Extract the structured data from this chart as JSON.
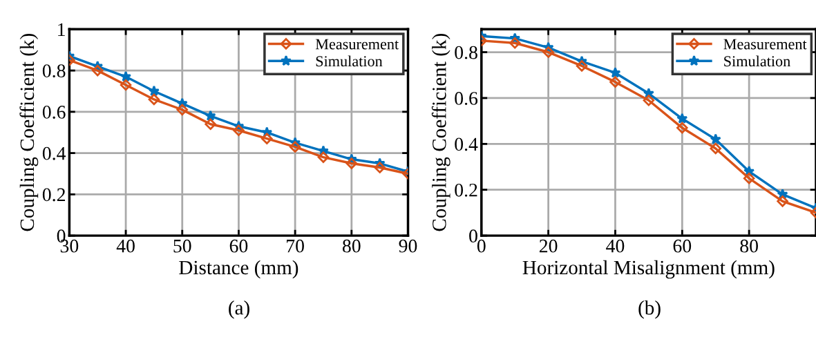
{
  "chart_data": [
    {
      "type": "line",
      "xlabel": "Distance (mm)",
      "ylabel": "Coupling Coefficient (k)",
      "annotations": [
        "(a)"
      ],
      "x": [
        30,
        35,
        40,
        45,
        50,
        55,
        60,
        65,
        70,
        75,
        80,
        85,
        90
      ],
      "xlim": [
        30,
        90
      ],
      "xticks": [
        30,
        40,
        50,
        60,
        70,
        80,
        90
      ],
      "ylim": [
        0,
        1
      ],
      "yticks": [
        0,
        0.2,
        0.4,
        0.6,
        0.8,
        1
      ],
      "grid": true,
      "legend": "top right",
      "series": [
        {
          "name": "Measurement",
          "color": "#d95319",
          "marker": "diamond",
          "values": [
            0.85,
            0.8,
            0.73,
            0.66,
            0.61,
            0.54,
            0.51,
            0.47,
            0.43,
            0.38,
            0.35,
            0.33,
            0.3
          ]
        },
        {
          "name": "Simulation",
          "color": "#0072bd",
          "marker": "star",
          "values": [
            0.87,
            0.82,
            0.77,
            0.7,
            0.64,
            0.58,
            0.53,
            0.5,
            0.45,
            0.41,
            0.37,
            0.35,
            0.31
          ]
        }
      ]
    },
    {
      "type": "line",
      "xlabel": "Horizontal Misalignment (mm)",
      "ylabel": "Coupling Coefficient (k)",
      "annotations": [
        "(b)"
      ],
      "x": [
        0,
        10,
        20,
        30,
        40,
        50,
        60,
        70,
        80,
        90,
        100
      ],
      "xlim": [
        0,
        100
      ],
      "xticks": [
        0,
        20,
        40,
        60,
        80
      ],
      "ylim": [
        0,
        0.9
      ],
      "yticks": [
        0,
        0.2,
        0.4,
        0.6,
        0.8
      ],
      "grid": true,
      "legend": "top right",
      "series": [
        {
          "name": "Measurement",
          "color": "#d95319",
          "marker": "diamond",
          "values": [
            0.85,
            0.84,
            0.8,
            0.74,
            0.67,
            0.59,
            0.47,
            0.38,
            0.25,
            0.15,
            0.1
          ]
        },
        {
          "name": "Simulation",
          "color": "#0072bd",
          "marker": "star",
          "values": [
            0.87,
            0.86,
            0.82,
            0.76,
            0.71,
            0.62,
            0.51,
            0.42,
            0.28,
            0.18,
            0.12
          ]
        }
      ]
    }
  ]
}
